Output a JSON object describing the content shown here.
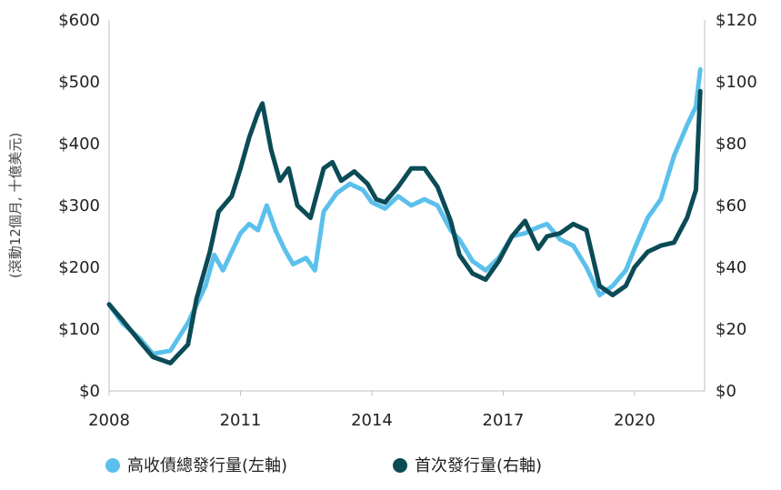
{
  "chart_data": {
    "type": "line",
    "y_left_label": "(滾動12個月, 十億美元)",
    "y_left_ticks": [
      "$0",
      "$100",
      "$200",
      "$300",
      "$400",
      "$500",
      "$600"
    ],
    "y_right_ticks": [
      "$0",
      "$20",
      "$40",
      "$60",
      "$80",
      "$100",
      "$120"
    ],
    "x_ticks": [
      "2008",
      "2011",
      "2014",
      "2017",
      "2020"
    ],
    "x_tick_values": [
      2008,
      2011,
      2014,
      2017,
      2020
    ],
    "xlim": [
      2008,
      2021.6
    ],
    "ylim_left": [
      0,
      600
    ],
    "ylim_right": [
      0,
      120
    ],
    "grid": false,
    "legend_position": "bottom-left",
    "series": [
      {
        "name": "高收債總發行量(左軸)",
        "axis": "left",
        "color": "#5bc0eb",
        "x": [
          2008.0,
          2008.3,
          2008.7,
          2009.0,
          2009.4,
          2009.8,
          2010.2,
          2010.4,
          2010.6,
          2011.0,
          2011.2,
          2011.4,
          2011.6,
          2011.8,
          2012.0,
          2012.2,
          2012.5,
          2012.7,
          2012.9,
          2013.2,
          2013.5,
          2013.8,
          2014.0,
          2014.3,
          2014.6,
          2014.9,
          2015.2,
          2015.5,
          2015.8,
          2016.0,
          2016.3,
          2016.6,
          2016.9,
          2017.2,
          2017.5,
          2017.8,
          2018.0,
          2018.3,
          2018.6,
          2018.9,
          2019.2,
          2019.5,
          2019.8,
          2020.0,
          2020.3,
          2020.6,
          2020.9,
          2021.2,
          2021.4,
          2021.5
        ],
        "y": [
          140,
          110,
          85,
          60,
          65,
          110,
          170,
          220,
          195,
          255,
          270,
          260,
          300,
          260,
          230,
          205,
          215,
          195,
          290,
          320,
          335,
          325,
          305,
          295,
          315,
          300,
          310,
          300,
          260,
          245,
          210,
          195,
          215,
          250,
          255,
          265,
          270,
          245,
          235,
          200,
          155,
          170,
          195,
          230,
          280,
          310,
          380,
          430,
          460,
          520
        ]
      },
      {
        "name": "首次發行量(右軸)",
        "axis": "right",
        "color": "#0b4b56",
        "x": [
          2008.0,
          2008.3,
          2008.7,
          2009.0,
          2009.4,
          2009.8,
          2010.0,
          2010.3,
          2010.5,
          2010.8,
          2011.0,
          2011.2,
          2011.4,
          2011.5,
          2011.7,
          2011.9,
          2012.1,
          2012.3,
          2012.6,
          2012.9,
          2013.1,
          2013.3,
          2013.6,
          2013.9,
          2014.1,
          2014.3,
          2014.6,
          2014.9,
          2015.2,
          2015.5,
          2015.8,
          2016.0,
          2016.3,
          2016.6,
          2016.9,
          2017.2,
          2017.5,
          2017.8,
          2018.0,
          2018.3,
          2018.6,
          2018.9,
          2019.2,
          2019.5,
          2019.8,
          2020.0,
          2020.3,
          2020.6,
          2020.9,
          2021.2,
          2021.4,
          2021.5
        ],
        "y": [
          28,
          23,
          16,
          11,
          9,
          15,
          30,
          45,
          58,
          63,
          72,
          82,
          90,
          93,
          78,
          68,
          72,
          60,
          56,
          72,
          74,
          68,
          71,
          67,
          62,
          61,
          66,
          72,
          72,
          66,
          55,
          44,
          38,
          36,
          42,
          50,
          55,
          46,
          50,
          51,
          54,
          52,
          34,
          31,
          34,
          40,
          45,
          47,
          48,
          56,
          65,
          97
        ]
      }
    ]
  }
}
